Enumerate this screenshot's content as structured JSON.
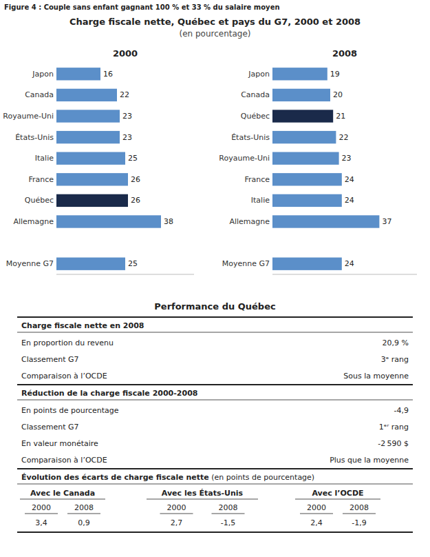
{
  "figure_label": "Figure 4 : Couple sans enfant gagnant 100 % et 33 % du salaire moyen",
  "title": "Charge fiscale nette, Québec et pays du G7, 2000 et 2008",
  "subtitle": "(en pourcentage)",
  "chart_data": [
    {
      "type": "bar",
      "orientation": "horizontal",
      "title": "2000",
      "categories": [
        "Japon",
        "Canada",
        "Royaume-Uni",
        "États-Unis",
        "Italie",
        "France",
        "Québec",
        "Allemagne",
        null,
        "Moyenne G7"
      ],
      "values": [
        16,
        22,
        23,
        23,
        25,
        26,
        26,
        38,
        null,
        25
      ],
      "colors": [
        "#5b8fc9",
        "#5b8fc9",
        "#5b8fc9",
        "#5b8fc9",
        "#5b8fc9",
        "#5b8fc9",
        "#1a2a4a",
        "#5b8fc9",
        null,
        "#5b8fc9"
      ],
      "xlim": [
        0,
        50
      ],
      "tick_labels": "y",
      "data_labels": true,
      "grid": false
    },
    {
      "type": "bar",
      "orientation": "horizontal",
      "title": "2008",
      "categories": [
        "Japon",
        "Canada",
        "Québec",
        "États-Unis",
        "Royaume-Uni",
        "France",
        "Italie",
        "Allemagne",
        null,
        "Moyenne G7"
      ],
      "values": [
        19,
        20,
        21,
        22,
        23,
        24,
        24,
        37,
        null,
        24
      ],
      "colors": [
        "#5b8fc9",
        "#5b8fc9",
        "#1a2a4a",
        "#5b8fc9",
        "#5b8fc9",
        "#5b8fc9",
        "#5b8fc9",
        "#5b8fc9",
        null,
        "#5b8fc9"
      ],
      "xlim": [
        0,
        50
      ],
      "tick_labels": "y",
      "data_labels": true,
      "grid": false
    }
  ],
  "table": {
    "title": "Performance du Québec",
    "sections": [
      {
        "header": "Charge fiscale nette en 2008",
        "rows": [
          [
            "En proportion du revenu",
            "20,9 %"
          ],
          [
            "Classement G7",
            "3ᵉ rang"
          ],
          [
            "Comparaison à l’OCDE",
            "Sous la moyenne"
          ]
        ]
      },
      {
        "header": "Réduction de la charge fiscale 2000-2008",
        "rows": [
          [
            "En points de pourcentage",
            "-4,9"
          ],
          [
            "Classement G7",
            "1ᵉʳ rang"
          ],
          [
            "En valeur monétaire",
            "-2 590 $"
          ],
          [
            "Comparaison à l’OCDE",
            "Plus que la moyenne"
          ]
        ]
      }
    ],
    "comparison": {
      "header": "Évolution des écarts de charge fiscale nette",
      "header_note": " (en points de pourcentage)",
      "columns": [
        "Avec le Canada",
        "Avec les États-Unis",
        "Avec l’OCDE"
      ],
      "years": [
        "2000",
        "2008",
        "2000",
        "2008",
        "2000",
        "2008"
      ],
      "values": [
        "3,4",
        "0,9",
        "2,7",
        "-1,5",
        "2,4",
        "-1,9"
      ]
    }
  }
}
